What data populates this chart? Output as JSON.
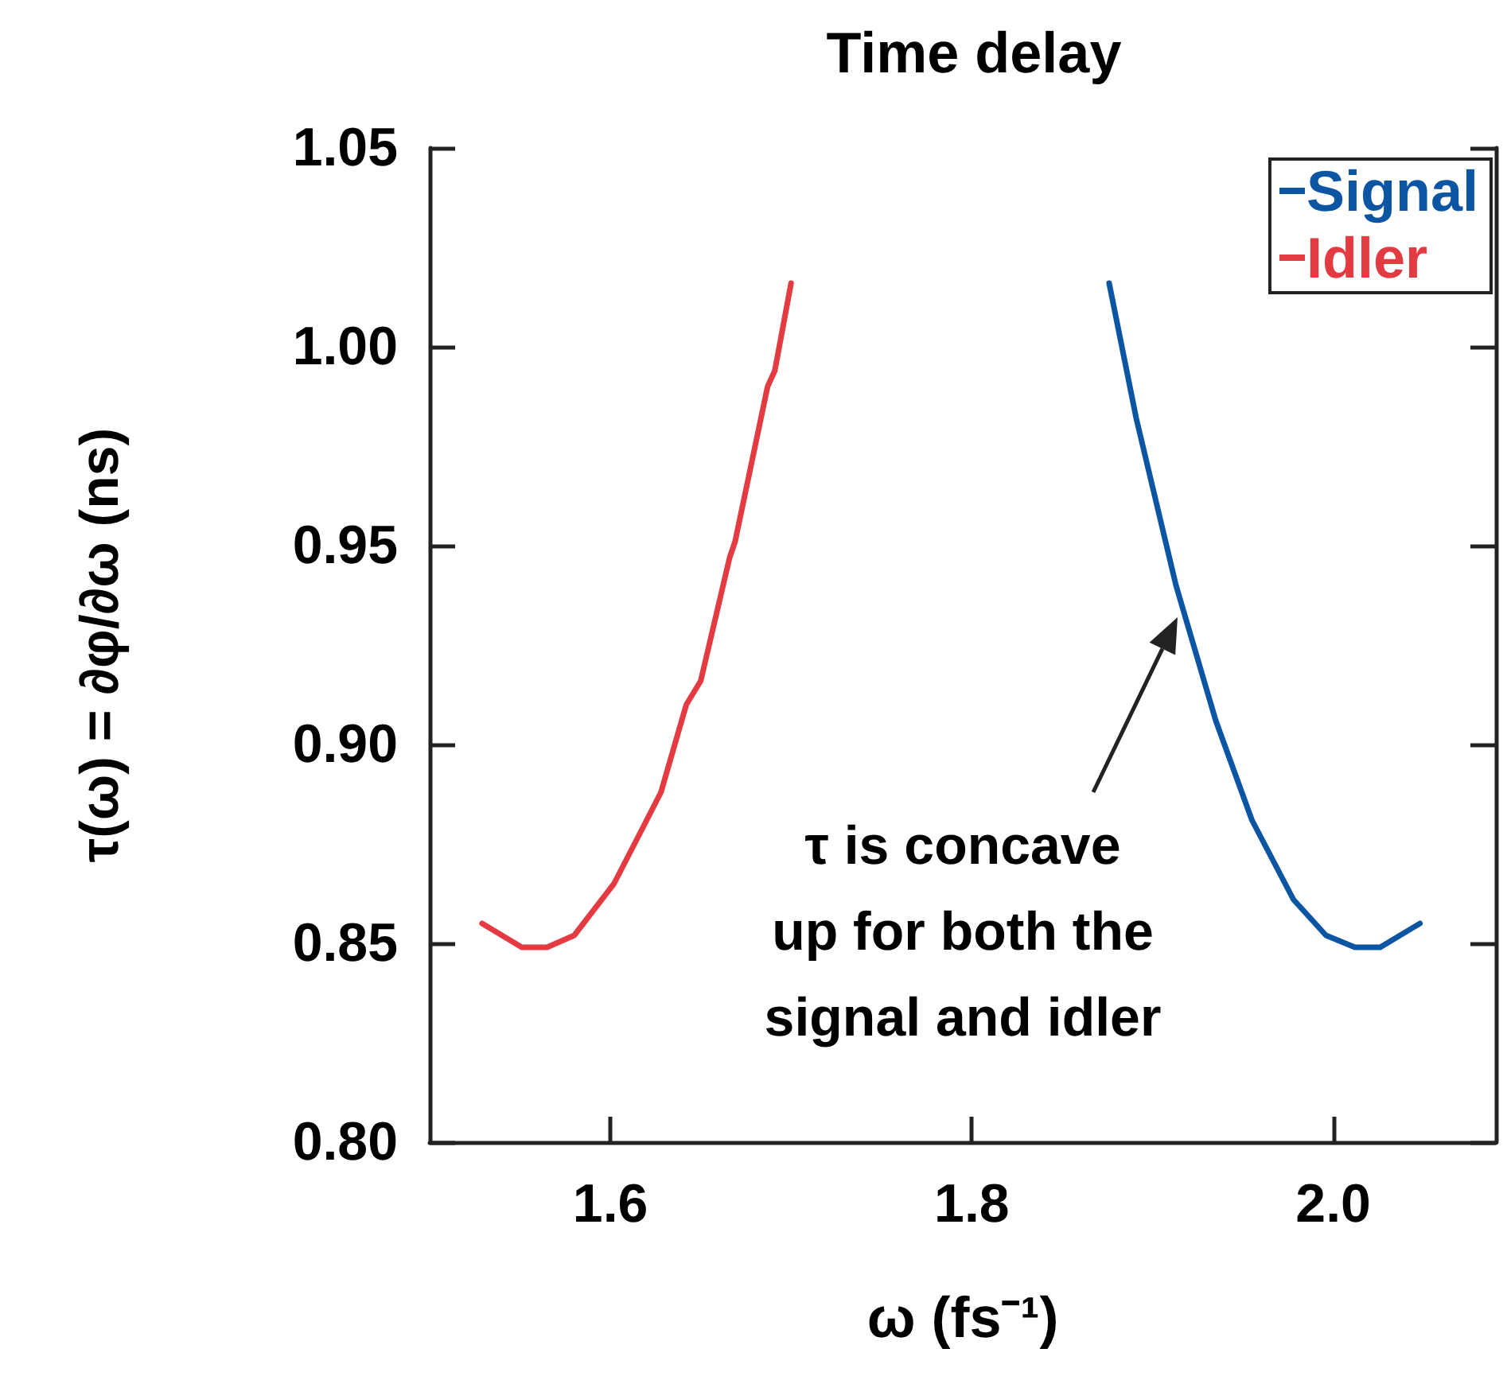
{
  "chart_data": {
    "type": "line",
    "title": "Time delay",
    "xlabel": "ω (fs⁻¹)",
    "ylabel": "τ(ω) = ∂φ/∂ω (ns)",
    "xlim": [
      1.5,
      2.09
    ],
    "xticks": [
      {
        "value": 1.6,
        "label": "1.6"
      },
      {
        "value": 1.8,
        "label": "1.8"
      },
      {
        "value": 2,
        "label": "2.0"
      }
    ],
    "ylim": [
      0.8,
      1.05
    ],
    "yticks": [
      {
        "value": 0.8,
        "label": "0.80"
      },
      {
        "value": 0.85,
        "label": "0.85"
      },
      {
        "value": 0.9,
        "label": "0.90"
      },
      {
        "value": 0.95,
        "label": "0.95"
      },
      {
        "value": 1,
        "label": "1.00"
      },
      {
        "value": 1.05,
        "label": "1.05"
      }
    ],
    "grid": false,
    "legend": "top right",
    "marker": "none",
    "line_style": "solid",
    "series": [
      {
        "name": "Signal",
        "color": "#0b55a3",
        "x": [
          1.876,
          1.891,
          1.913,
          1.935,
          1.955,
          1.978,
          1.996,
          2.012,
          2.026,
          2.048
        ],
        "values": [
          1.016,
          0.982,
          0.94,
          0.906,
          0.881,
          0.861,
          0.852,
          0.849,
          0.849,
          0.855
        ]
      },
      {
        "name": "Idler",
        "color": "#e33b41",
        "x": [
          1.529,
          1.551,
          1.565,
          1.58,
          1.602,
          1.619,
          1.628,
          1.642,
          1.65,
          1.666,
          1.669,
          1.687,
          1.691,
          1.7
        ],
        "values": [
          0.855,
          0.849,
          0.849,
          0.852,
          0.865,
          0.88,
          0.888,
          0.91,
          0.916,
          0.947,
          0.951,
          0.99,
          0.994,
          1.016
        ]
      }
    ],
    "annotations": [
      "τ is concave\nup for both the\nsignal and idler"
    ]
  }
}
